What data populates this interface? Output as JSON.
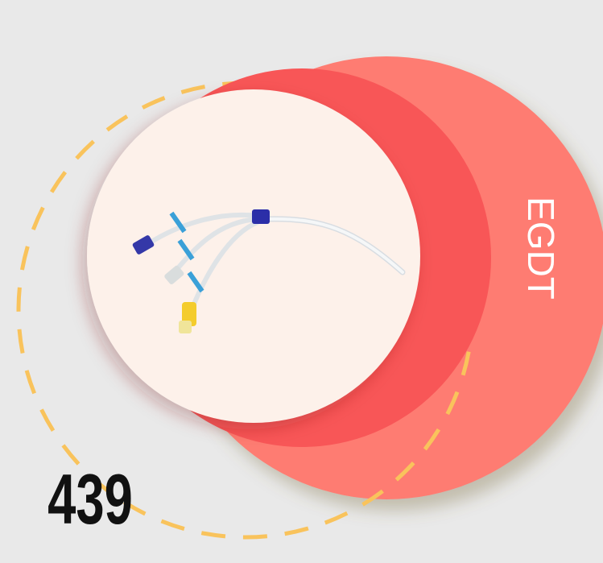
{
  "graphic": {
    "side_label": "EGDT",
    "number": "439"
  }
}
